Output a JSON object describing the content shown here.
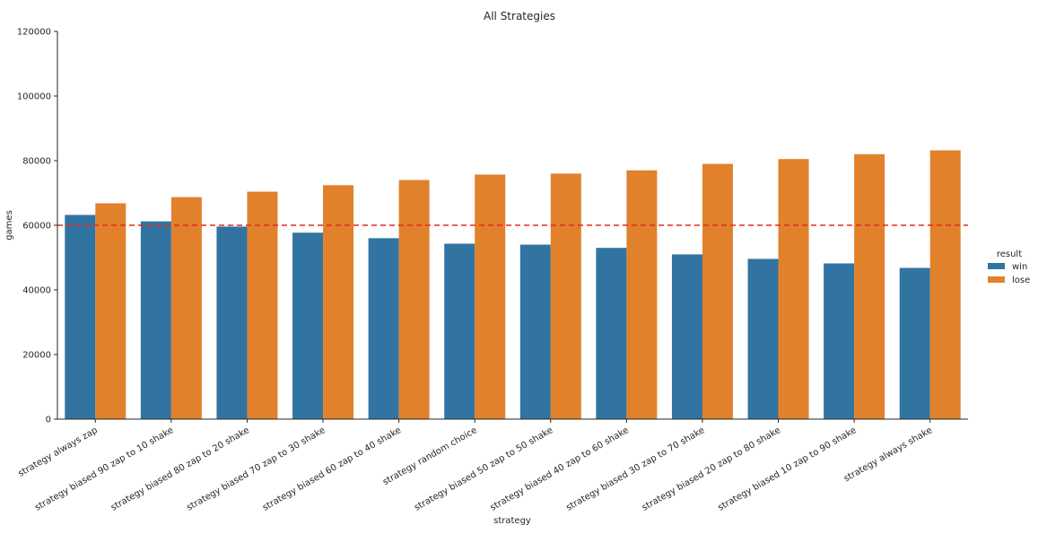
{
  "chart_data": {
    "type": "bar",
    "title": "All Strategies",
    "xlabel": "strategy",
    "ylabel": "games",
    "ylim": [
      0,
      120000
    ],
    "yticks": [
      0,
      20000,
      40000,
      60000,
      80000,
      100000,
      120000
    ],
    "categories": [
      "strategy always zap",
      "strategy biased 90 zap to 10 shake",
      "strategy biased 80 zap to 20 shake",
      "strategy biased 70 zap to 30 shake",
      "strategy biased 60 zap to 40 shake",
      "strategy random choice",
      "strategy biased 50 zap to 50 shake",
      "strategy biased 40 zap to 60 shake",
      "strategy biased 30 zap to 70 shake",
      "strategy biased 20 zap to 80 shake",
      "strategy biased 10 zap to 90 shake",
      "strategy always shake"
    ],
    "series": [
      {
        "name": "win",
        "color": "#3274a1",
        "values": [
          63200,
          61200,
          59600,
          57700,
          56000,
          54300,
          54000,
          53000,
          51000,
          49600,
          48200,
          46800
        ]
      },
      {
        "name": "lose",
        "color": "#e1812c",
        "values": [
          66800,
          68700,
          70400,
          72400,
          74000,
          75700,
          76000,
          77000,
          79000,
          80500,
          82000,
          83200
        ]
      }
    ],
    "reference_line": {
      "y": 60000,
      "color": "#e8291c",
      "style": "dashed"
    },
    "legend": {
      "title": "result",
      "placement": "right"
    },
    "grid": false
  }
}
